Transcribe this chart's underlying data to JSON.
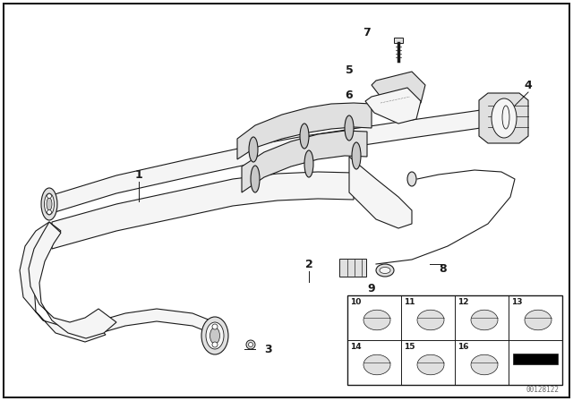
{
  "bg_color": "#ffffff",
  "line_color": "#1a1a1a",
  "fill_light": "#f5f5f5",
  "fill_mid": "#e0e0e0",
  "fill_dark": "#c8c8c8",
  "watermark": "00128122",
  "label_fontsize": 9,
  "small_fontsize": 6.5
}
